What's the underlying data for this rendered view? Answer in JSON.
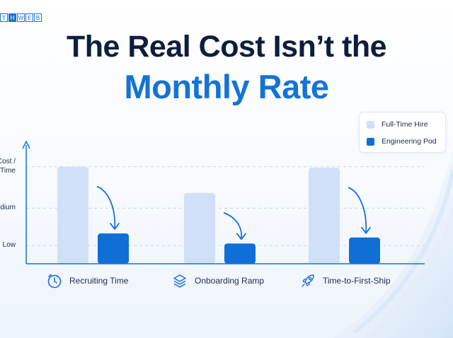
{
  "brand": {
    "letters": [
      "T",
      "H",
      "W",
      "E",
      "B"
    ]
  },
  "title": {
    "line1": "The Real Cost Isn’t the",
    "line2": "Monthly Rate"
  },
  "colors": {
    "full_time": "#cfe0f8",
    "pod": "#0f6fd6",
    "axis": "#1a6fd9",
    "title_dark": "#0d1e3d",
    "title_blue": "#1473d6"
  },
  "chart_data": {
    "type": "bar",
    "categories": [
      "Recruiting Time",
      "Onboarding Ramp",
      "Time-to-First-Ship"
    ],
    "category_icons": [
      "clock-icon",
      "layers-icon",
      "rocket-icon"
    ],
    "series": [
      {
        "name": "Full-Time Hire",
        "values": [
          0.96,
          0.7,
          0.95
        ]
      },
      {
        "name": "Engineering Pod",
        "values": [
          0.3,
          0.2,
          0.26
        ]
      }
    ],
    "ylim": [
      0,
      1
    ],
    "y_ticks": [
      {
        "value": 0.96,
        "label": "Cost /\nTime"
      },
      {
        "value": 0.55,
        "label": "Medium"
      },
      {
        "value": 0.18,
        "label": "Low"
      }
    ],
    "legend_position": "top-right",
    "grid": true
  }
}
